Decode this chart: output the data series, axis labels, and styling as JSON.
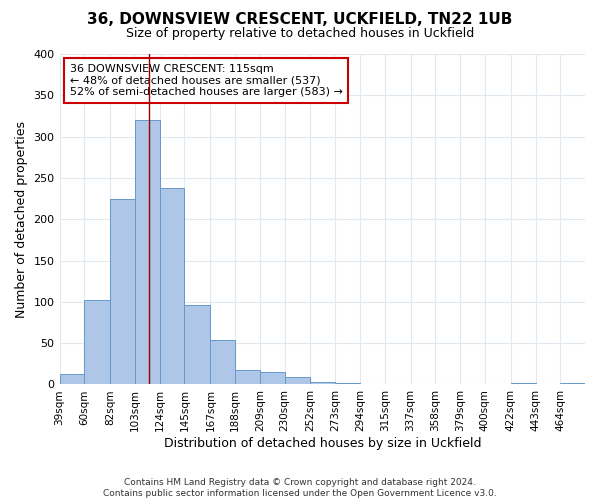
{
  "title": "36, DOWNSVIEW CRESCENT, UCKFIELD, TN22 1UB",
  "subtitle": "Size of property relative to detached houses in Uckfield",
  "xlabel": "Distribution of detached houses by size in Uckfield",
  "ylabel": "Number of detached properties",
  "bin_labels": [
    "39sqm",
    "60sqm",
    "82sqm",
    "103sqm",
    "124sqm",
    "145sqm",
    "167sqm",
    "188sqm",
    "209sqm",
    "230sqm",
    "252sqm",
    "273sqm",
    "294sqm",
    "315sqm",
    "337sqm",
    "358sqm",
    "379sqm",
    "400sqm",
    "422sqm",
    "443sqm",
    "464sqm"
  ],
  "bar_heights": [
    13,
    102,
    225,
    320,
    238,
    96,
    54,
    17,
    15,
    9,
    3,
    2,
    0,
    0,
    0,
    0,
    0,
    0,
    2,
    0,
    2
  ],
  "bar_color": "#aec6e8",
  "bar_edge_color": "#6699cc",
  "background_color": "#ffffff",
  "plot_bg_color": "#ffffff",
  "grid_color": "#e0e8f0",
  "property_line_x": 115,
  "annotation_title": "36 DOWNSVIEW CRESCENT: 115sqm",
  "annotation_line1": "← 48% of detached houses are smaller (537)",
  "annotation_line2": "52% of semi-detached houses are larger (583) →",
  "annotation_box_color": "#ffffff",
  "annotation_border_color": "#cc0000",
  "footer_line1": "Contains HM Land Registry data © Crown copyright and database right 2024.",
  "footer_line2": "Contains public sector information licensed under the Open Government Licence v3.0.",
  "ylim": [
    0,
    400
  ],
  "bin_edges": [
    39,
    60,
    82,
    103,
    124,
    145,
    167,
    188,
    209,
    230,
    252,
    273,
    294,
    315,
    337,
    358,
    379,
    400,
    422,
    443,
    464
  ],
  "yticks": [
    0,
    50,
    100,
    150,
    200,
    250,
    300,
    350,
    400
  ]
}
